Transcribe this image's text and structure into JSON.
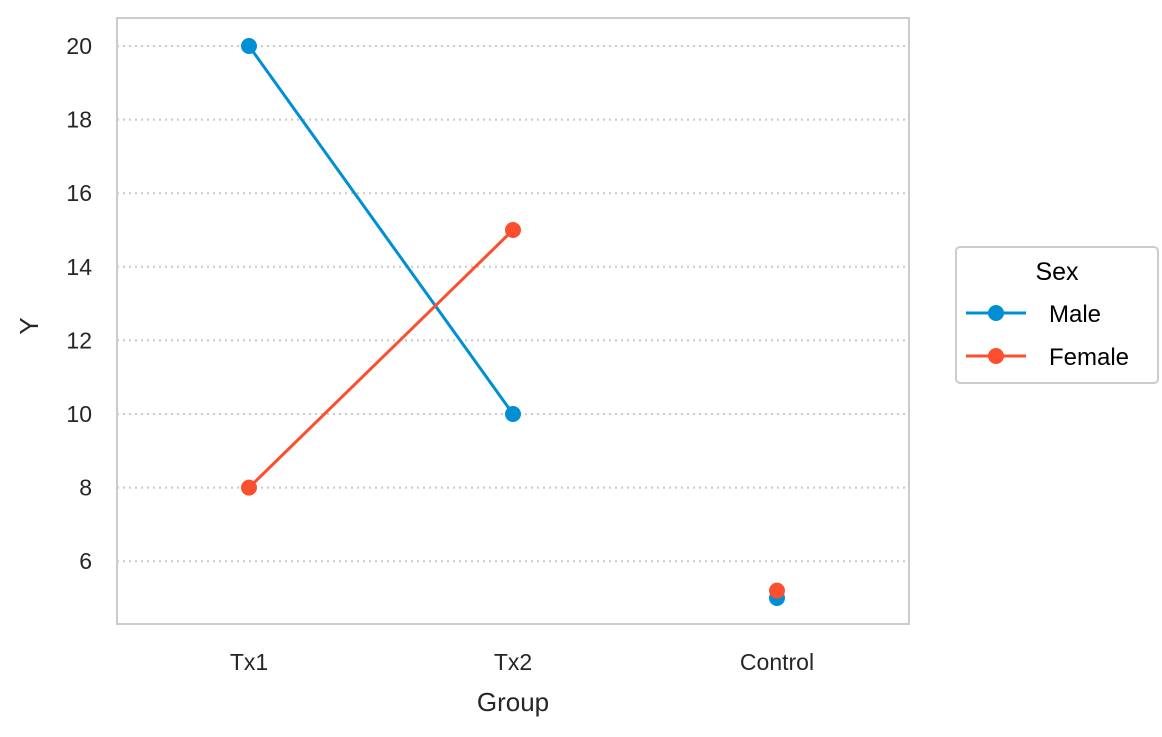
{
  "chart_data": {
    "type": "line",
    "title": "",
    "xlabel": "Group",
    "ylabel": "Y",
    "categories": [
      "Tx1",
      "Tx2",
      "Control"
    ],
    "ylim": [
      4.3,
      20.75
    ],
    "yticks": [
      6,
      8,
      10,
      12,
      14,
      16,
      18,
      20
    ],
    "grid": "y-dotted",
    "legend": {
      "title": "Sex",
      "placement": "right-outside"
    },
    "series": [
      {
        "name": "Male",
        "color": "#008FD5",
        "values": [
          20,
          10,
          5
        ],
        "connected": [
          true,
          true,
          false
        ]
      },
      {
        "name": "Female",
        "color": "#FC4F30",
        "values": [
          8,
          15,
          5.2
        ],
        "connected": [
          true,
          true,
          false
        ]
      }
    ]
  }
}
